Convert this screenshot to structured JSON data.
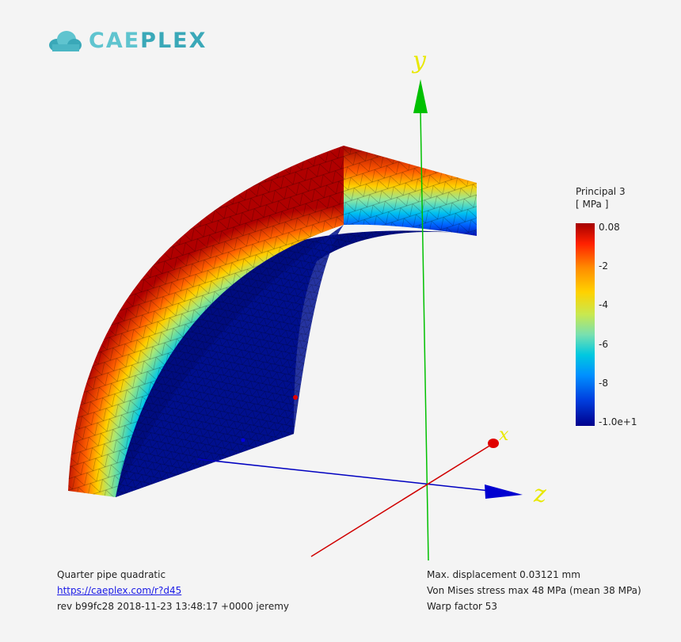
{
  "logo": {
    "text_a": "CAE",
    "text_b": "PLEX"
  },
  "axes": {
    "x": "x",
    "y": "y",
    "z": "z"
  },
  "colorbar": {
    "title": "Principal 3",
    "unit": "[ MPa ]",
    "ticks": [
      "0.08",
      "-2",
      "-4",
      "-6",
      "-8",
      "-1.0e+1"
    ]
  },
  "info_left": {
    "title": "Quarter pipe quadratic",
    "link": "https://caeplex.com/r?d45",
    "revision": "rev b99fc28 2018-11-23 13:48:17 +0000 jeremy"
  },
  "info_right": {
    "displacement": "Max. displacement 0.03121 mm",
    "stress": "Von Mises stress max 48 MPa (mean 38 MPa)",
    "warp": "Warp factor 53"
  }
}
